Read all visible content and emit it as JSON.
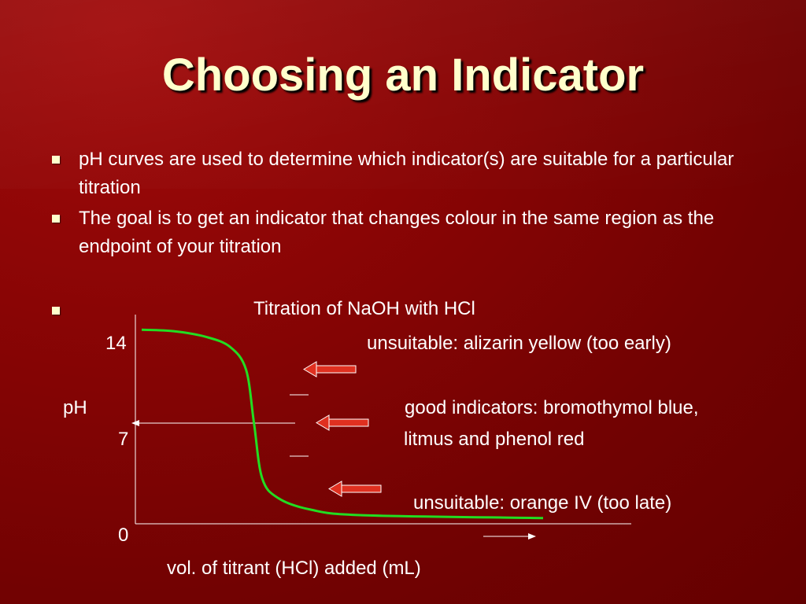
{
  "slide": {
    "title": "Choosing an Indicator",
    "bullets": [
      "pH curves are used to determine which indicator(s) are suitable for a particular titration",
      "The goal is to get an indicator that changes colour in the same region as the endpoint of your titration",
      "Titration of NaOH with HCl"
    ]
  },
  "chart_data": {
    "type": "line",
    "title": "Titration of NaOH with HCl",
    "xlabel": "vol. of titrant (HCl) added (mL)",
    "ylabel": "pH",
    "y_ticks": [
      "14",
      "7",
      "0"
    ],
    "ylim": [
      0,
      14
    ],
    "series": [
      {
        "color": "#22dd22",
        "points": [
          [
            0,
            13.6
          ],
          [
            8,
            13.5
          ],
          [
            16,
            13.1
          ],
          [
            22,
            12.4
          ],
          [
            26,
            10.8
          ],
          [
            28,
            7
          ],
          [
            30,
            3.2
          ],
          [
            34,
            1.8
          ],
          [
            42,
            1.0
          ],
          [
            55,
            0.6
          ],
          [
            100,
            0.4
          ]
        ]
      }
    ],
    "annotations": [
      {
        "text": "unsuitable: alizarin yellow (too early)"
      },
      {
        "text": "good indicators: bromothymol blue,",
        "text2": "litmus and phenol red"
      },
      {
        "text": "unsuitable: orange IV (too late)"
      }
    ]
  },
  "colors": {
    "background": "#7a0202",
    "title": "#ffffcc",
    "curve": "#22dd22",
    "arrow": "#e03020"
  }
}
